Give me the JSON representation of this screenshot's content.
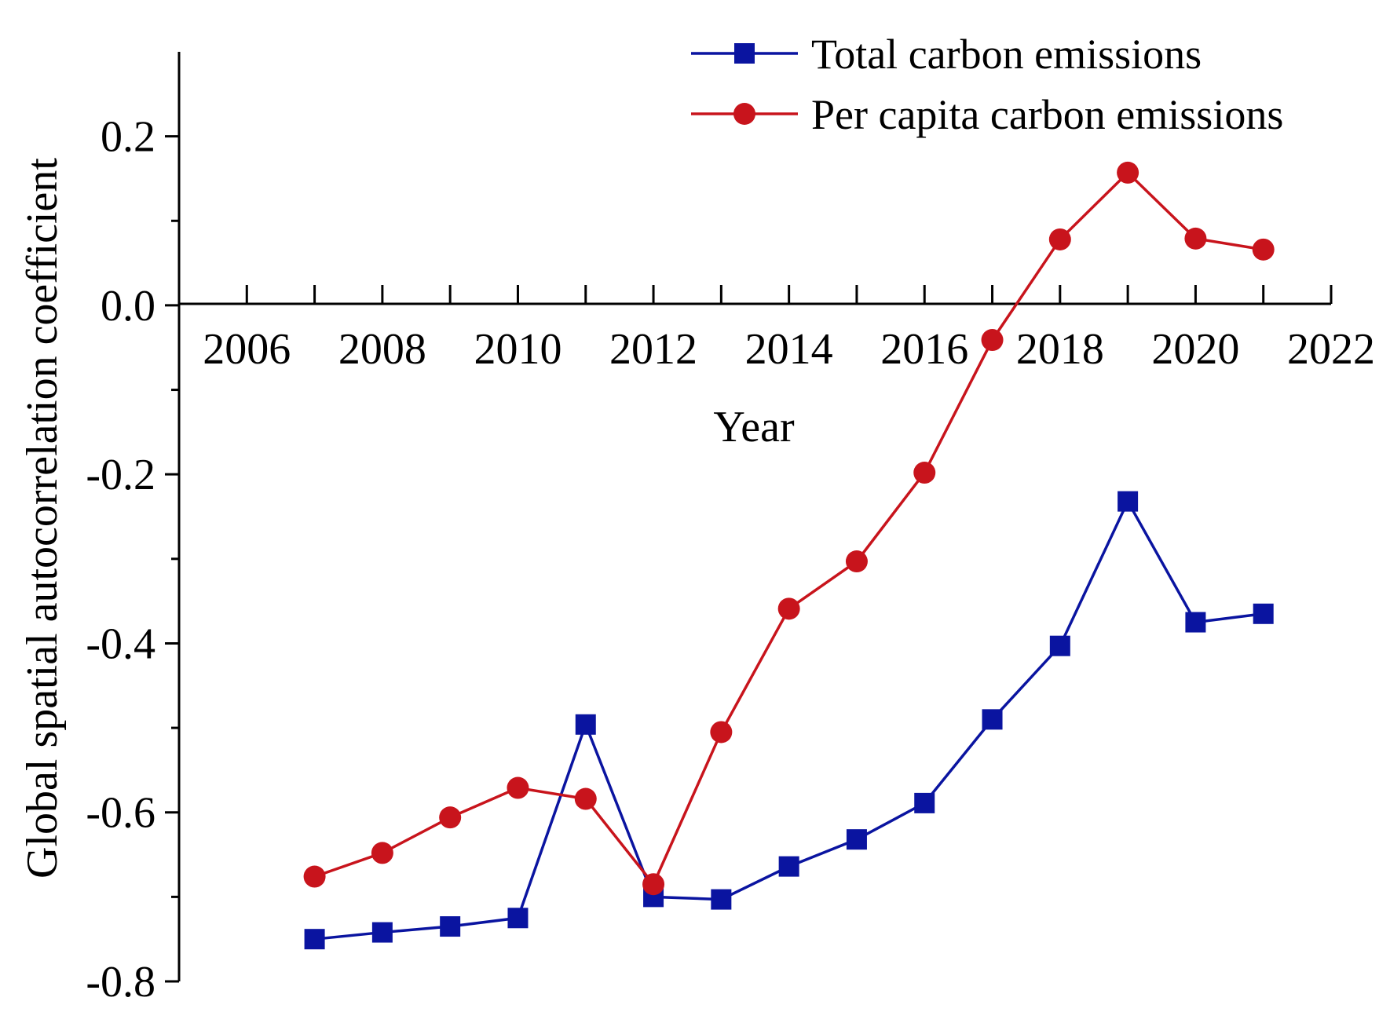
{
  "chart_data": {
    "type": "line",
    "title": "",
    "xlabel": "Year",
    "ylabel": "Global spatial autocorrelation coefficient",
    "xlim": [
      2005,
      2022
    ],
    "ylim": [
      -0.8,
      0.3
    ],
    "x_ticks": [
      2006,
      2008,
      2010,
      2012,
      2014,
      2016,
      2018,
      2020,
      2022
    ],
    "x_tick_labels": [
      "2006",
      "2008",
      "2010",
      "2012",
      "2014",
      "2016",
      "2018",
      "2020",
      "2022"
    ],
    "y_ticks": [
      0.2,
      0.0,
      -0.2,
      -0.4,
      -0.6,
      -0.8
    ],
    "y_tick_labels": [
      "0.2",
      "0.0",
      "-0.2",
      "-0.4",
      "-0.6",
      "-0.8"
    ],
    "grid": false,
    "legend_position": "top-right",
    "x": [
      2007,
      2008,
      2009,
      2010,
      2011,
      2012,
      2013,
      2014,
      2015,
      2016,
      2017,
      2018,
      2019,
      2020,
      2021
    ],
    "series": [
      {
        "name": "Total carbon emissions",
        "color": "#0a14a0",
        "marker": "square",
        "values": [
          -0.75,
          -0.742,
          -0.735,
          -0.725,
          -0.496,
          -0.7,
          -0.703,
          -0.664,
          -0.632,
          -0.589,
          -0.49,
          -0.403,
          -0.232,
          -0.375,
          -0.365
        ]
      },
      {
        "name": "Per capita carbon emissions",
        "color": "#c8141c",
        "marker": "circle",
        "values": [
          -0.676,
          -0.648,
          -0.606,
          -0.571,
          -0.584,
          -0.685,
          -0.505,
          -0.359,
          -0.303,
          -0.198,
          -0.041,
          0.078,
          0.157,
          0.079,
          0.066
        ]
      }
    ]
  }
}
